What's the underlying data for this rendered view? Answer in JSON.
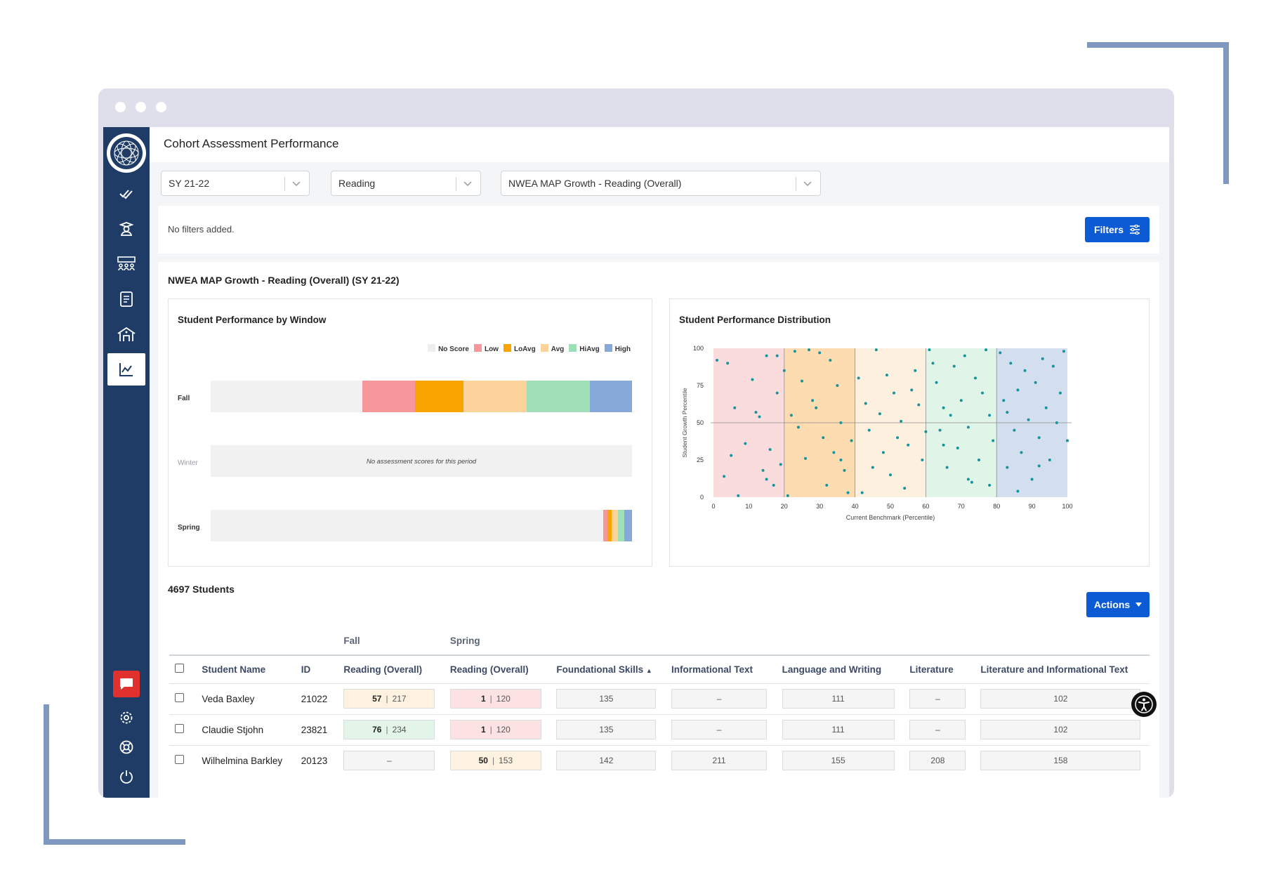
{
  "app": {
    "title": "Cohort Assessment Performance",
    "sidebar": [
      "logo-icon",
      "checklist-icon",
      "student-icon",
      "groups-icon",
      "book-icon",
      "school-icon",
      "chart-icon"
    ],
    "sidebar_bottom": [
      "chat-icon",
      "gear-icon",
      "help-icon",
      "power-icon"
    ]
  },
  "selects": [
    {
      "value": "SY 21-22"
    },
    {
      "value": "Reading"
    },
    {
      "value": "NWEA MAP Growth - Reading (Overall)"
    }
  ],
  "filters": {
    "empty_text": "No filters added.",
    "button_label": "Filters"
  },
  "report": {
    "title": "NWEA MAP Growth - Reading (Overall) (SY 21-22)",
    "window_card_title": "Student Performance by Window",
    "dist_card_title": "Student Performance Distribution",
    "legend": [
      {
        "label": "No Score",
        "color": "#eeeeee"
      },
      {
        "label": "Low",
        "color": "#f7979c"
      },
      {
        "label": "LoAvg",
        "color": "#f9a400"
      },
      {
        "label": "Avg",
        "color": "#fcd49b"
      },
      {
        "label": "HiAvg",
        "color": "#9fdfb8"
      },
      {
        "label": "High",
        "color": "#86a9d9"
      }
    ],
    "windows": [
      {
        "label": "Fall",
        "shares": [
          0.36,
          0.125,
          0.115,
          0.15,
          0.15,
          0.1
        ],
        "message": ""
      },
      {
        "label": "Winter",
        "shares": [
          1,
          0,
          0,
          0,
          0,
          0
        ],
        "message": "No assessment scores for this period"
      },
      {
        "label": "Spring",
        "shares": [
          0.932,
          0.01,
          0.01,
          0.015,
          0.015,
          0.018
        ],
        "message": ""
      }
    ]
  },
  "chart_data": {
    "type": "scatter",
    "title": "Student Performance Distribution",
    "xlabel": "Current Benchmark (Percentile)",
    "ylabel": "Student Growth Percentile",
    "xlim": [
      0,
      100
    ],
    "ylim": [
      0,
      100
    ],
    "xticks": [
      0,
      10,
      20,
      30,
      40,
      50,
      60,
      70,
      80,
      90,
      100
    ],
    "yticks": [
      0,
      25,
      50,
      75,
      100
    ],
    "bands": [
      {
        "from": 0,
        "to": 20,
        "color": "#fadcdc"
      },
      {
        "from": 20,
        "to": 40,
        "color": "#fcdcb0"
      },
      {
        "from": 40,
        "to": 60,
        "color": "#fdf0df"
      },
      {
        "from": 60,
        "to": 80,
        "color": "#e1f4e8"
      },
      {
        "from": 80,
        "to": 100,
        "color": "#d3deee"
      }
    ],
    "reference_lines": {
      "x": [
        20,
        40,
        60,
        80
      ],
      "y": 50
    },
    "points": [
      [
        1,
        92
      ],
      [
        4,
        90
      ],
      [
        6,
        60
      ],
      [
        11,
        79
      ],
      [
        12,
        57
      ],
      [
        13,
        54
      ],
      [
        14,
        18
      ],
      [
        15,
        12
      ],
      [
        16,
        32
      ],
      [
        17,
        8
      ],
      [
        18,
        95
      ],
      [
        18,
        70
      ],
      [
        19,
        22
      ],
      [
        20,
        85
      ],
      [
        21,
        1
      ],
      [
        22,
        55
      ],
      [
        23,
        98
      ],
      [
        24,
        47
      ],
      [
        25,
        78
      ],
      [
        27,
        99
      ],
      [
        28,
        65
      ],
      [
        30,
        97
      ],
      [
        31,
        40
      ],
      [
        32,
        8
      ],
      [
        33,
        92
      ],
      [
        34,
        30
      ],
      [
        35,
        75
      ],
      [
        36,
        50
      ],
      [
        37,
        18
      ],
      [
        38,
        3
      ],
      [
        39,
        38
      ],
      [
        41,
        80
      ],
      [
        43,
        63
      ],
      [
        44,
        45
      ],
      [
        45,
        20
      ],
      [
        46,
        99
      ],
      [
        47,
        56
      ],
      [
        48,
        30
      ],
      [
        50,
        15
      ],
      [
        51,
        70
      ],
      [
        52,
        40
      ],
      [
        53,
        51
      ],
      [
        55,
        35
      ],
      [
        56,
        72
      ],
      [
        57,
        85
      ],
      [
        58,
        62
      ],
      [
        59,
        25
      ],
      [
        61,
        99
      ],
      [
        62,
        90
      ],
      [
        63,
        77
      ],
      [
        64,
        45
      ],
      [
        65,
        60
      ],
      [
        66,
        20
      ],
      [
        67,
        55
      ],
      [
        68,
        88
      ],
      [
        69,
        33
      ],
      [
        70,
        65
      ],
      [
        71,
        95
      ],
      [
        72,
        47
      ],
      [
        73,
        10
      ],
      [
        74,
        80
      ],
      [
        75,
        25
      ],
      [
        76,
        70
      ],
      [
        77,
        99
      ],
      [
        78,
        55
      ],
      [
        79,
        38
      ],
      [
        81,
        97
      ],
      [
        82,
        65
      ],
      [
        83,
        20
      ],
      [
        84,
        90
      ],
      [
        85,
        45
      ],
      [
        86,
        72
      ],
      [
        87,
        30
      ],
      [
        88,
        85
      ],
      [
        89,
        52
      ],
      [
        90,
        12
      ],
      [
        91,
        77
      ],
      [
        92,
        40
      ],
      [
        93,
        93
      ],
      [
        94,
        60
      ],
      [
        95,
        25
      ],
      [
        96,
        88
      ],
      [
        97,
        50
      ],
      [
        98,
        70
      ],
      [
        99,
        98
      ],
      [
        3,
        14
      ],
      [
        7,
        1
      ],
      [
        9,
        36
      ],
      [
        26,
        26
      ],
      [
        42,
        3
      ],
      [
        54,
        6
      ],
      [
        60,
        44
      ],
      [
        78,
        8
      ],
      [
        86,
        4
      ],
      [
        92,
        21
      ],
      [
        100,
        38
      ],
      [
        15,
        95
      ],
      [
        29,
        60
      ],
      [
        49,
        82
      ],
      [
        65,
        35
      ],
      [
        83,
        57
      ],
      [
        72,
        12
      ],
      [
        36,
        25
      ],
      [
        5,
        28
      ]
    ]
  },
  "students": {
    "count_label": "4697 Students",
    "actions_label": "Actions",
    "group_headers": {
      "fall": "Fall",
      "spring": "Spring"
    },
    "columns": [
      "Student Name",
      "ID",
      "Reading (Overall)",
      "Reading (Overall)",
      "Foundational Skills",
      "Informational Text",
      "Language and Writing",
      "Literature",
      "Literature and Informational Text"
    ],
    "rows": [
      {
        "name": "Veda Baxley",
        "id": "21022",
        "fall_score": "57",
        "fall_rit": "217",
        "fall_color": "#fdf1df",
        "spring_score": "1",
        "spring_rit": "120",
        "spring_color": "#fde2e3",
        "foundational": "135",
        "informational": "–",
        "language": "111",
        "literature": "–",
        "lit_info": "102"
      },
      {
        "name": "Claudie Stjohn",
        "id": "23821",
        "fall_score": "76",
        "fall_rit": "234",
        "fall_color": "#e2f5e8",
        "spring_score": "1",
        "spring_rit": "120",
        "spring_color": "#fde2e3",
        "foundational": "135",
        "informational": "–",
        "language": "111",
        "literature": "–",
        "lit_info": "102"
      },
      {
        "name": "Wilhelmina Barkley",
        "id": "20123",
        "fall_score": "",
        "fall_rit": "–",
        "fall_color": "#f5f5f5",
        "spring_score": "50",
        "spring_rit": "153",
        "spring_color": "#fdf1df",
        "foundational": "142",
        "informational": "211",
        "language": "155",
        "literature": "208",
        "lit_info": "158"
      }
    ]
  }
}
